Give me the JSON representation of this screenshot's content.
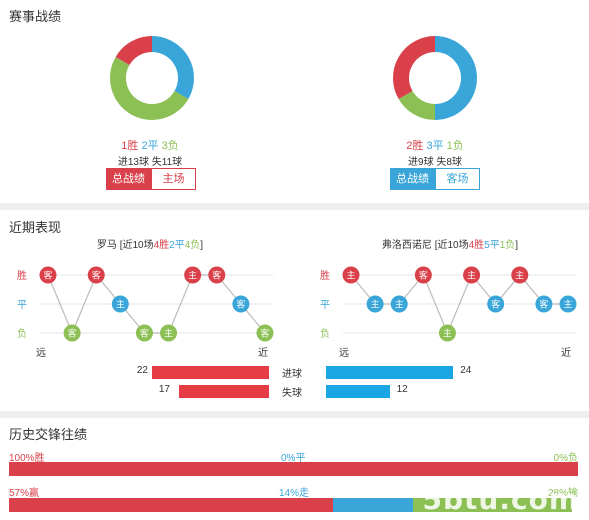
{
  "sections": {
    "record_title": "赛事战绩",
    "recent_title": "近期表现",
    "history_title": "历史交锋往绩"
  },
  "colors": {
    "win": "#d9404a",
    "draw": "#3aa5d8",
    "loss": "#8cc054",
    "bar_red": "#e63d44",
    "bar_blue": "#1aa6e4"
  },
  "left_team": {
    "name": "罗马",
    "donut": {
      "win": 1,
      "draw": 2,
      "loss": 3
    },
    "win_label": "1胜",
    "draw_label": "2平",
    "loss_label": "3负",
    "goals_line": "进13球  失11球",
    "buttons": {
      "all": "总战绩",
      "venue": "主场"
    },
    "recent": {
      "prefix": "[近10场",
      "wins": "4胜",
      "draws": "2平",
      "losses": "4负",
      "suffix": "]",
      "results": [
        "W",
        "L",
        "W",
        "D",
        "L",
        "L",
        "W",
        "W",
        "D",
        "L"
      ],
      "venues": [
        "客",
        "客",
        "客",
        "主",
        "客",
        "主",
        "主",
        "客",
        "客",
        "客"
      ]
    },
    "scored": 22,
    "conceded": 17
  },
  "right_team": {
    "name": "弗洛西诺尼",
    "donut": {
      "win": 2,
      "draw": 3,
      "loss": 1
    },
    "win_label": "2胜",
    "draw_label": "3平",
    "loss_label": "1负",
    "goals_line": "进9球  失8球",
    "buttons": {
      "all": "总战绩",
      "venue": "客场"
    },
    "recent": {
      "prefix": "[近10场",
      "wins": "4胜",
      "draws": "5平",
      "losses": "1负",
      "suffix": "]",
      "results": [
        "W",
        "D",
        "D",
        "W",
        "L",
        "W",
        "D",
        "W",
        "D",
        "D"
      ],
      "venues": [
        "主",
        "主",
        "主",
        "客",
        "主",
        "主",
        "客",
        "主",
        "客",
        "主"
      ]
    },
    "scored": 24,
    "conceded": 12
  },
  "axis": {
    "win": "胜",
    "draw": "平",
    "loss": "负",
    "far": "远",
    "near": "近"
  },
  "mid_labels": {
    "scored": "进球",
    "conceded": "失球"
  },
  "history": {
    "row1": {
      "win": "100%胜",
      "draw": "0%平",
      "loss": "0%负",
      "win_pct": 100,
      "draw_pct": 0,
      "loss_pct": 0
    },
    "row2": {
      "win": "57%赢",
      "draw": "14%走",
      "loss": "28%输",
      "win_pct": 57,
      "draw_pct": 14,
      "loss_pct": 28
    }
  },
  "watermark": "5btu.com"
}
